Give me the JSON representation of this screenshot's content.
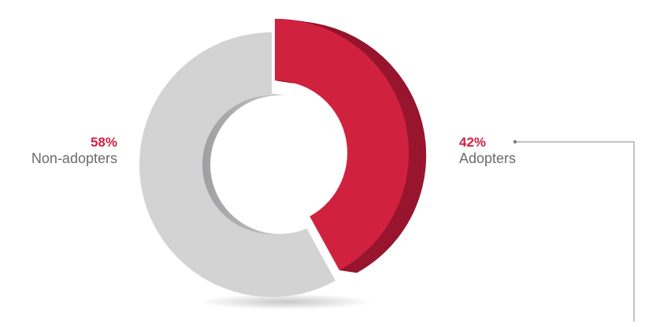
{
  "chart_data": {
    "type": "pie",
    "variant": "3d-donut",
    "title": "",
    "slices": [
      {
        "label": "Adopters",
        "value": 42,
        "display": "42%",
        "color": "#d0223f",
        "side_color": "#9c1630"
      },
      {
        "label": "Non-adopters",
        "value": 58,
        "display": "58%",
        "color": "#d3d3d4",
        "side_color": "#b5b5b7"
      }
    ],
    "legend": "direct-labels"
  }
}
